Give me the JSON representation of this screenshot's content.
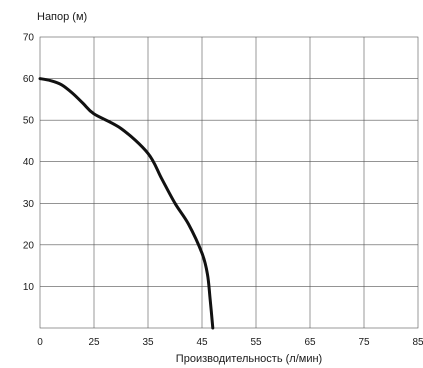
{
  "chart_data": {
    "type": "line",
    "ylabel": "Напор (м)",
    "xlabel": "Производительность (л/мин)",
    "xlim": [
      0,
      85
    ],
    "ylim": [
      0,
      70
    ],
    "x_ticks": [
      0,
      25,
      35,
      45,
      55,
      65,
      75,
      85
    ],
    "y_ticks": [
      10,
      20,
      30,
      40,
      50,
      60,
      70
    ],
    "grid": true,
    "series": [
      {
        "color": "#111111",
        "x": [
          0,
          5,
          10,
          15,
          20,
          25,
          30,
          35,
          37.5,
          40,
          42.5,
          45,
          46,
          46.5,
          47
        ],
        "y": [
          60,
          59.5,
          58.5,
          56.5,
          54,
          51.5,
          48,
          42,
          36,
          30,
          25,
          18,
          13,
          7,
          0
        ]
      }
    ]
  }
}
